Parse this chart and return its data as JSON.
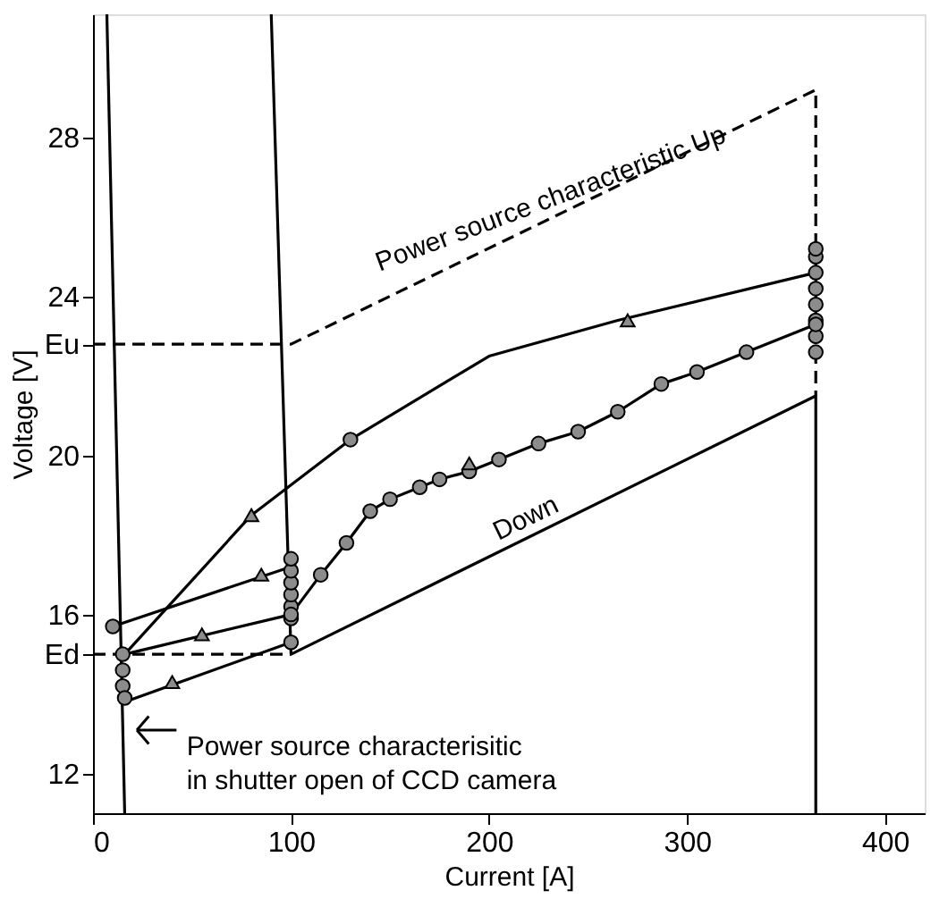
{
  "chart_data": {
    "type": "line",
    "xlabel": "Current [A]",
    "ylabel": "Voltage [V]",
    "xlim": [
      0,
      420
    ],
    "ylim": [
      11,
      31.1
    ],
    "xticks": [
      0,
      100,
      200,
      300,
      400
    ],
    "yticks": [
      12,
      {
        "value": 15,
        "label": "Ed"
      },
      16,
      20,
      {
        "value": 22.8,
        "label": "Eu"
      },
      24,
      28
    ],
    "grid": false,
    "series": [
      {
        "color": "#000000",
        "line_style": "solid",
        "marker": "none",
        "x": [
          7,
          16
        ],
        "values": [
          31.1,
          11
        ]
      },
      {
        "color": "#000000",
        "line_style": "solid",
        "marker": "none",
        "x": [
          90,
          100,
          365,
          365
        ],
        "values": [
          31.1,
          15,
          21.5,
          11
        ]
      },
      {
        "color": "#000000",
        "line_style": "dashed",
        "marker": "none",
        "x": [
          0,
          100,
          365,
          365
        ],
        "values": [
          22.8,
          22.8,
          29.2,
          21.5
        ]
      },
      {
        "color": "#000000",
        "line_style": "dashed",
        "marker": "none",
        "x": [
          0,
          100
        ],
        "values": [
          15,
          15
        ]
      },
      {
        "color": "#000000",
        "line_style": "solid",
        "marker": "none",
        "x": [
          365,
          265,
          200,
          130,
          80,
          16,
          100,
          115,
          128,
          140,
          150,
          165,
          175,
          190,
          205,
          225,
          245,
          265,
          287,
          305,
          330,
          365
        ],
        "values": [
          24.6,
          23.4,
          22.5,
          20.4,
          18.5,
          15,
          16,
          17,
          17.8,
          18.6,
          18.9,
          19.2,
          19.4,
          19.6,
          19.9,
          20.3,
          20.6,
          21.1,
          21.8,
          22.1,
          22.6,
          23.3
        ]
      },
      {
        "color": "#000000",
        "line_style": "solid",
        "marker": "none",
        "x": [
          10,
          100
        ],
        "values": [
          15.7,
          17.2
        ]
      },
      {
        "color": "#000000",
        "line_style": "solid",
        "marker": "none",
        "x": [
          16,
          100
        ],
        "values": [
          13.8,
          15.3
        ]
      },
      {
        "type": "scatter",
        "color": "#8c8c8c",
        "marker": "circle",
        "x": [
          10,
          15,
          15,
          15,
          16,
          100,
          100,
          100,
          100,
          100,
          100,
          100,
          100,
          115,
          128,
          140,
          150,
          165,
          175,
          190,
          205,
          225,
          245,
          265,
          287,
          305,
          330,
          130,
          365,
          365,
          365,
          365,
          365,
          365,
          365,
          365,
          365
        ],
        "values": [
          15.7,
          14.2,
          14.6,
          15,
          13.9,
          15.3,
          15.9,
          16.2,
          16.5,
          16.8,
          17.1,
          17.4,
          16,
          17,
          17.8,
          18.6,
          18.9,
          19.2,
          19.4,
          19.6,
          19.9,
          20.3,
          20.6,
          21.1,
          21.8,
          22.1,
          22.6,
          20.4,
          22.6,
          23,
          23.4,
          23.8,
          24.2,
          24.6,
          25,
          25.2,
          23.3
        ]
      },
      {
        "type": "scatter",
        "color": "#8c8c8c",
        "marker": "triangle",
        "x": [
          40,
          55,
          80,
          85,
          190,
          270
        ],
        "values": [
          14.3,
          15.5,
          18.5,
          17,
          19.8,
          23.4
        ]
      }
    ],
    "annotations": [
      "Power source characteristic Up",
      "Down",
      "Power source characterisitic\nin shutter open of  CCD camera"
    ]
  }
}
